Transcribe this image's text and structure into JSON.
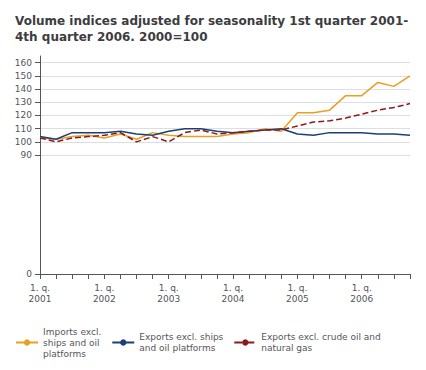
{
  "chart_data": {
    "type": "line",
    "title": "Volume indices adjusted for seasonality 1st quarter 2001-\n4th quarter 2006. 2000=100",
    "categories": [
      "1. q.\n2001",
      null,
      null,
      null,
      "1. q.\n2002",
      null,
      null,
      null,
      "1. q.\n2003",
      null,
      null,
      null,
      "1. q.\n2004",
      null,
      null,
      null,
      "1. q.\n2005",
      null,
      null,
      null,
      "1. q.\n2006",
      null,
      null,
      null
    ],
    "series": [
      {
        "name": "Imports excl.\nships and oil\nplatforms",
        "color": "#E8A020",
        "line_style": "solid",
        "values": [
          103,
          102,
          104,
          105,
          103,
          106,
          102,
          107,
          105,
          104,
          104,
          104,
          106,
          107,
          110,
          108,
          122,
          122,
          124,
          135,
          135,
          145,
          142,
          150
        ]
      },
      {
        "name": "Exports excl. ships\nand oil platforms",
        "color": "#1A3F7A",
        "line_style": "solid",
        "values": [
          104,
          102,
          107,
          107,
          107,
          108,
          106,
          105,
          108,
          110,
          110,
          108,
          107,
          108,
          109,
          110,
          106,
          105,
          107,
          107,
          107,
          106,
          106,
          105
        ]
      },
      {
        "name": "Exports excl. crude oil and\nnatural gas",
        "color": "#8B1A1A",
        "line_style": "dashed",
        "values": [
          103,
          100,
          103,
          104,
          105,
          107,
          100,
          104,
          100,
          107,
          109,
          106,
          107,
          108,
          109,
          109,
          112,
          115,
          116,
          118,
          121,
          124,
          126,
          129
        ]
      }
    ],
    "ylim": [
      0,
      165
    ],
    "yticks": [
      0,
      90,
      100,
      110,
      120,
      130,
      140,
      150,
      160
    ],
    "grid": true,
    "legend": "bottom"
  }
}
